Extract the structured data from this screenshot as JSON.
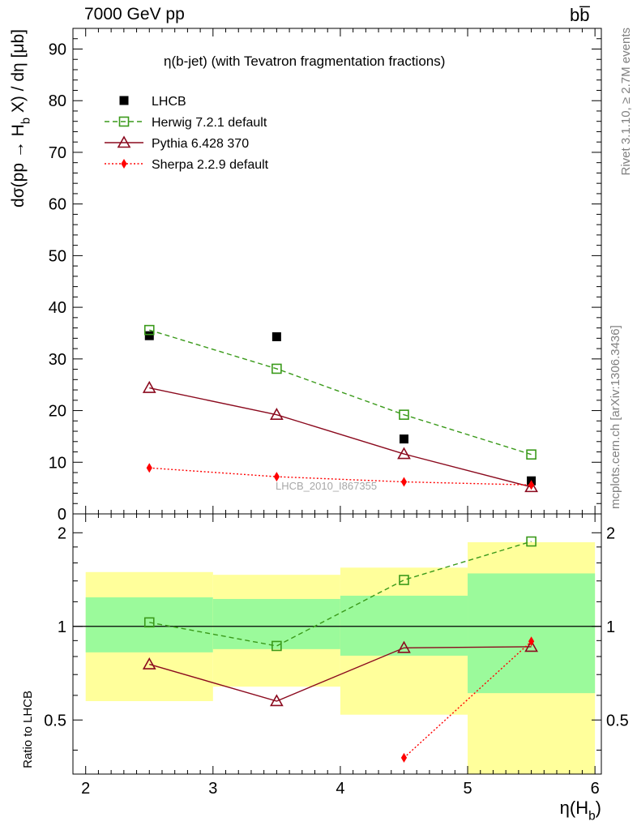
{
  "header": {
    "energy_label": "7000 GeV pp",
    "process_label": "bb̅",
    "side_rivet": "Rivet 3.1.10, ≥ 2.7M events",
    "side_mcplots": "mcplots.cern.ch [arXiv:1306.3436]",
    "watermark": "LHCB_2010_I867355"
  },
  "chart_data": [
    {
      "type": "scatter",
      "title": "η(b-jet) (with Tevatron fragmentation fractions)",
      "ylabel": "dσ(pp → H_b X) / dη [μb]",
      "xlabel": "η(H_b)",
      "xlim": [
        1.9,
        6.05
      ],
      "ylim": [
        0,
        94
      ],
      "x_ticks": [
        2,
        3,
        4,
        5,
        6
      ],
      "y_ticks": [
        0,
        10,
        20,
        30,
        40,
        50,
        60,
        70,
        80,
        90
      ],
      "y_tick_labels": [
        "0",
        "10",
        "20",
        "30",
        "40",
        "50",
        "60",
        "70",
        "80",
        "90"
      ],
      "legend_position": "top-left",
      "x": [
        2.5,
        3.5,
        4.5,
        5.5
      ],
      "series": [
        {
          "name": "LHCB",
          "values": [
            34.5,
            34.3,
            14.5,
            6.4
          ],
          "color": "#000000",
          "marker": "filled-square"
        },
        {
          "name": "Herwig 7.2.1 default",
          "values": [
            35.6,
            28.1,
            19.2,
            11.5
          ],
          "color": "#3a9a1a",
          "marker": "open-square",
          "line": "dashed"
        },
        {
          "name": "Pythia 6.428 370",
          "values": [
            24.4,
            19.2,
            11.6,
            5.2
          ],
          "color": "#8b0a1e",
          "marker": "open-triangle",
          "line": "solid"
        },
        {
          "name": "Sherpa 2.2.9 default",
          "values": [
            8.9,
            7.2,
            6.2,
            5.6
          ],
          "color": "#ff0000",
          "marker": "filled-diamond",
          "line": "dotted"
        }
      ]
    },
    {
      "type": "line",
      "ylabel": "Ratio to LHCB",
      "xlabel": "η(H_b)",
      "xlim": [
        1.9,
        6.05
      ],
      "ylim": [
        0.335,
        2.3
      ],
      "y_scale": "log",
      "y_ticks": [
        0.5,
        1,
        2
      ],
      "y_tick_labels": [
        "0.5",
        "1",
        "2"
      ],
      "x_ticks": [
        2,
        3,
        4,
        5,
        6
      ],
      "x_tick_labels": [
        "2",
        "3",
        "4",
        "5",
        "6"
      ],
      "reference_line": 1,
      "bins": [
        [
          2,
          3
        ],
        [
          3,
          4
        ],
        [
          4,
          5
        ],
        [
          5,
          6
        ]
      ],
      "band_1sigma": [
        [
          0.825,
          1.24
        ],
        [
          0.845,
          1.225
        ],
        [
          0.805,
          1.255
        ],
        [
          0.61,
          1.48
        ]
      ],
      "band_2sigma": [
        [
          0.575,
          1.495
        ],
        [
          0.64,
          1.465
        ],
        [
          0.52,
          1.545
        ],
        [
          0.3,
          1.865
        ]
      ],
      "band_colors": {
        "inner": "#9bfa9b",
        "outer": "#ffff9b"
      },
      "x": [
        2.5,
        3.5,
        4.5,
        5.5
      ],
      "series": [
        {
          "name": "Herwig 7.2.1 default",
          "values": [
            1.03,
            0.865,
            1.41,
            1.875
          ],
          "color": "#3a9a1a",
          "marker": "open-square",
          "line": "dashed"
        },
        {
          "name": "Pythia 6.428 370",
          "values": [
            0.755,
            0.575,
            0.853,
            0.86
          ],
          "color": "#8b0a1e",
          "marker": "open-triangle",
          "line": "solid"
        },
        {
          "name": "Sherpa 2.2.9 default",
          "values": [
            null,
            null,
            0.378,
            0.895
          ],
          "color": "#ff0000",
          "marker": "filled-diamond",
          "line": "dotted"
        }
      ]
    }
  ]
}
